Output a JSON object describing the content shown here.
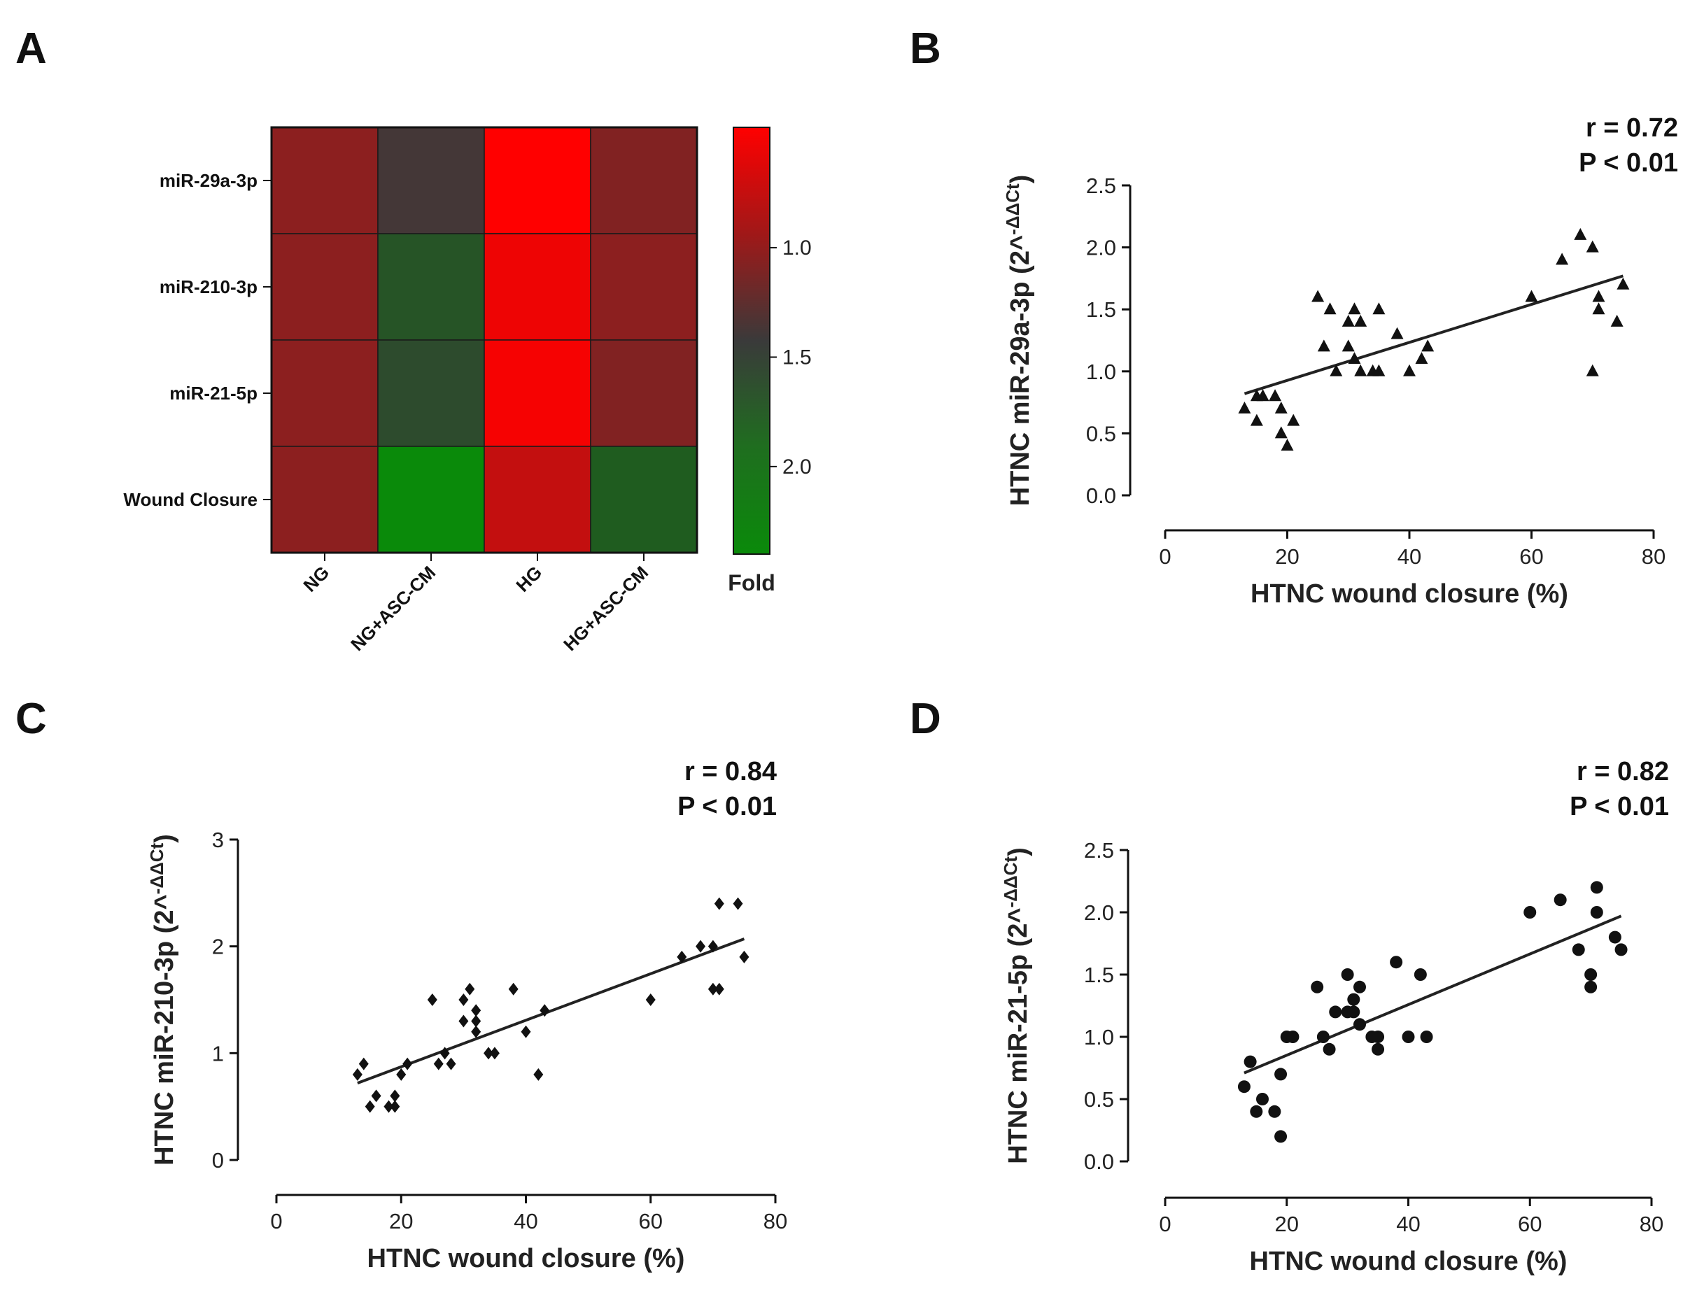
{
  "colors": {
    "low": "#0a8a0a",
    "mid": "#3a3a3a",
    "high": "#ff0000",
    "ink": "#111111"
  },
  "chart_data": [
    {
      "panel": "A",
      "type": "heatmap",
      "rows": [
        "miR-29a-3p",
        "miR-210-3p",
        "miR-21-5p",
        "Wound Closure"
      ],
      "columns": [
        "NG",
        "NG+ASC-CM",
        "HG",
        "HG+ASC-CM"
      ],
      "values": [
        [
          1.1,
          1.45,
          0.45,
          1.15
        ],
        [
          1.1,
          1.8,
          0.55,
          1.1
        ],
        [
          1.1,
          1.7,
          0.5,
          1.15
        ],
        [
          1.1,
          2.4,
          0.8,
          1.9
        ]
      ],
      "colorbar": {
        "title": "Fold",
        "ticks": [
          "1.0",
          "1.5",
          "2.0"
        ],
        "tick_values": [
          1.0,
          1.5,
          2.0
        ],
        "range": [
          0.45,
          2.4
        ]
      }
    },
    {
      "panel": "B",
      "type": "scatter",
      "marker": "triangle",
      "xlabel": "HTNC wound closure (%)",
      "ylabel": "HTNC miR-29a-3p (2^",
      "ylabel_sup": "-ΔΔCt",
      "ylabel_close": ")",
      "xlim": [
        0,
        80
      ],
      "ylim": [
        0,
        2.5
      ],
      "xticks": [
        "0",
        "20",
        "40",
        "60",
        "80"
      ],
      "yticks": [
        "0.0",
        "0.5",
        "1.0",
        "1.5",
        "2.0",
        "2.5"
      ],
      "r_text": "r = 0.72",
      "p_text": "P < 0.01",
      "fit": {
        "x": [
          13,
          75
        ],
        "y": [
          0.82,
          1.77
        ]
      },
      "points": [
        [
          13,
          0.7
        ],
        [
          15,
          0.6
        ],
        [
          15,
          0.8
        ],
        [
          16,
          0.8
        ],
        [
          18,
          0.8
        ],
        [
          19,
          0.7
        ],
        [
          19,
          0.5
        ],
        [
          20,
          0.4
        ],
        [
          21,
          0.6
        ],
        [
          25,
          1.6
        ],
        [
          26,
          1.2
        ],
        [
          27,
          1.5
        ],
        [
          28,
          1.0
        ],
        [
          30,
          1.4
        ],
        [
          30,
          1.2
        ],
        [
          31,
          1.5
        ],
        [
          31,
          1.1
        ],
        [
          32,
          1.4
        ],
        [
          32,
          1.0
        ],
        [
          34,
          1.0
        ],
        [
          35,
          1.0
        ],
        [
          35,
          1.5
        ],
        [
          38,
          1.3
        ],
        [
          40,
          1.0
        ],
        [
          42,
          1.1
        ],
        [
          43,
          1.2
        ],
        [
          60,
          1.6
        ],
        [
          65,
          1.9
        ],
        [
          68,
          2.1
        ],
        [
          70,
          2.0
        ],
        [
          70,
          1.0
        ],
        [
          71,
          1.6
        ],
        [
          71,
          1.5
        ],
        [
          74,
          1.4
        ],
        [
          75,
          1.7
        ]
      ]
    },
    {
      "panel": "C",
      "type": "scatter",
      "marker": "diamond",
      "xlabel": "HTNC wound closure (%)",
      "ylabel": "HTNC miR-210-3p (2^",
      "ylabel_sup": "-ΔΔCt",
      "ylabel_close": ")",
      "xlim": [
        0,
        80
      ],
      "ylim": [
        0,
        3
      ],
      "xticks": [
        "0",
        "20",
        "40",
        "60",
        "80"
      ],
      "yticks": [
        "0",
        "1",
        "2",
        "3"
      ],
      "r_text": "r = 0.84",
      "p_text": "P < 0.01",
      "fit": {
        "x": [
          13,
          75
        ],
        "y": [
          0.72,
          2.07
        ]
      },
      "points": [
        [
          13,
          0.8
        ],
        [
          14,
          0.9
        ],
        [
          15,
          0.5
        ],
        [
          16,
          0.6
        ],
        [
          18,
          0.5
        ],
        [
          19,
          0.6
        ],
        [
          19,
          0.5
        ],
        [
          20,
          0.8
        ],
        [
          21,
          0.9
        ],
        [
          25,
          1.5
        ],
        [
          26,
          0.9
        ],
        [
          27,
          1.0
        ],
        [
          28,
          0.9
        ],
        [
          30,
          1.5
        ],
        [
          30,
          1.3
        ],
        [
          31,
          1.6
        ],
        [
          32,
          1.4
        ],
        [
          32,
          1.3
        ],
        [
          32,
          1.2
        ],
        [
          34,
          1.0
        ],
        [
          35,
          1.0
        ],
        [
          38,
          1.6
        ],
        [
          40,
          1.2
        ],
        [
          42,
          0.8
        ],
        [
          43,
          1.4
        ],
        [
          60,
          1.5
        ],
        [
          65,
          1.9
        ],
        [
          68,
          2.0
        ],
        [
          70,
          2.0
        ],
        [
          70,
          1.6
        ],
        [
          71,
          2.4
        ],
        [
          71,
          1.6
        ],
        [
          74,
          2.4
        ],
        [
          75,
          1.9
        ]
      ]
    },
    {
      "panel": "D",
      "type": "scatter",
      "marker": "circle",
      "xlabel": "HTNC wound closure (%)",
      "ylabel": "HTNC miR-21-5p (2^",
      "ylabel_sup": "-ΔΔCt",
      "ylabel_close": ")",
      "xlim": [
        0,
        80
      ],
      "ylim": [
        0,
        2.5
      ],
      "xticks": [
        "0",
        "20",
        "40",
        "60",
        "80"
      ],
      "yticks": [
        "0.0",
        "0.5",
        "1.0",
        "1.5",
        "2.0",
        "2.5"
      ],
      "r_text": "r = 0.82",
      "p_text": "P < 0.01",
      "fit": {
        "x": [
          13,
          75
        ],
        "y": [
          0.71,
          1.97
        ]
      },
      "points": [
        [
          13,
          0.6
        ],
        [
          14,
          0.8
        ],
        [
          15,
          0.4
        ],
        [
          16,
          0.5
        ],
        [
          18,
          0.4
        ],
        [
          19,
          0.7
        ],
        [
          19,
          0.2
        ],
        [
          20,
          1.0
        ],
        [
          21,
          1.0
        ],
        [
          25,
          1.4
        ],
        [
          26,
          1.0
        ],
        [
          27,
          0.9
        ],
        [
          28,
          1.2
        ],
        [
          30,
          1.5
        ],
        [
          30,
          1.2
        ],
        [
          31,
          1.3
        ],
        [
          31,
          1.2
        ],
        [
          32,
          1.4
        ],
        [
          32,
          1.1
        ],
        [
          34,
          1.0
        ],
        [
          35,
          1.0
        ],
        [
          35,
          0.9
        ],
        [
          38,
          1.6
        ],
        [
          40,
          1.0
        ],
        [
          42,
          1.5
        ],
        [
          43,
          1.0
        ],
        [
          60,
          2.0
        ],
        [
          65,
          2.1
        ],
        [
          68,
          1.7
        ],
        [
          70,
          1.5
        ],
        [
          70,
          1.4
        ],
        [
          71,
          2.2
        ],
        [
          71,
          2.0
        ],
        [
          74,
          1.8
        ],
        [
          75,
          1.7
        ]
      ]
    }
  ]
}
